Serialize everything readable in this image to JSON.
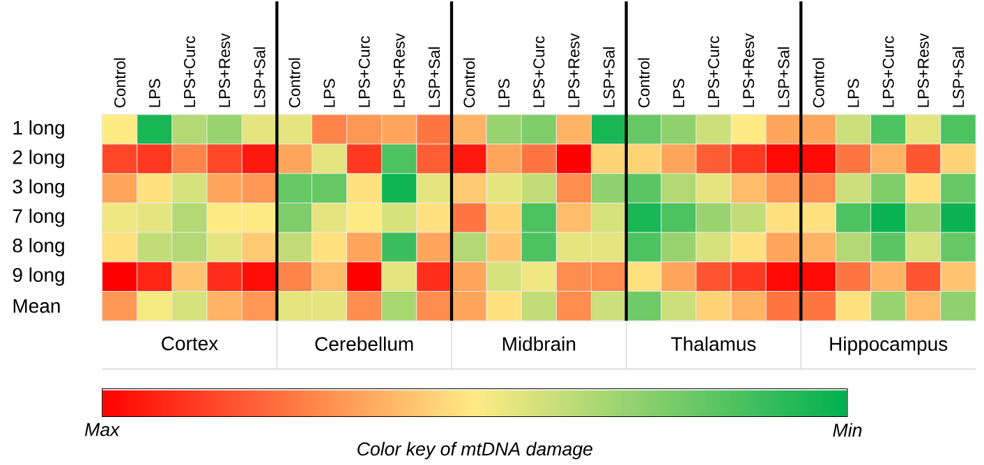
{
  "chart_data": {
    "type": "heatmap",
    "categories": [
      "Control",
      "LPS",
      "LPS+Curc",
      "LPS+Resv",
      "LSP+Sal",
      "Control",
      "LPS",
      "LPS+Curc",
      "LPS+Resv",
      "LSP+Sal",
      "Control",
      "LPS",
      "LPS+Curc",
      "LPS+Resv",
      "LSP+Sal",
      "Control",
      "LPS",
      "LPS+Curc",
      "LPS+Resv",
      "LSP+Sal",
      "Control",
      "LPS",
      "LPS+Curc",
      "LPS+Resv",
      "LSP+Sal"
    ],
    "y_categories": [
      "1 long",
      "2 long",
      "3 long",
      "7 long",
      "8 long",
      "9 long",
      "Mean"
    ],
    "cells": [
      [
        0.5,
        0.05,
        0.35,
        0.3,
        0.45,
        0.45,
        0.72,
        0.68,
        0.65,
        0.75,
        0.62,
        0.3,
        0.25,
        0.62,
        0.05,
        0.2,
        0.28,
        0.4,
        0.5,
        0.65,
        0.65,
        0.4,
        0.15,
        0.45,
        0.15
      ],
      [
        0.85,
        0.88,
        0.72,
        0.85,
        0.95,
        0.65,
        0.45,
        0.88,
        0.15,
        0.8,
        0.95,
        0.65,
        0.75,
        1.0,
        0.55,
        0.55,
        0.65,
        0.8,
        0.88,
        0.98,
        0.98,
        0.75,
        0.62,
        0.82,
        0.55
      ],
      [
        0.65,
        0.52,
        0.42,
        0.65,
        0.68,
        0.2,
        0.2,
        0.52,
        0.03,
        0.45,
        0.57,
        0.45,
        0.38,
        0.7,
        0.28,
        0.18,
        0.35,
        0.45,
        0.6,
        0.68,
        0.7,
        0.4,
        0.25,
        0.52,
        0.2
      ],
      [
        0.47,
        0.45,
        0.35,
        0.5,
        0.5,
        0.25,
        0.45,
        0.5,
        0.42,
        0.52,
        0.75,
        0.55,
        0.15,
        0.6,
        0.42,
        0.05,
        0.15,
        0.3,
        0.38,
        0.52,
        0.52,
        0.15,
        0.02,
        0.3,
        0.02
      ],
      [
        0.52,
        0.38,
        0.35,
        0.45,
        0.57,
        0.38,
        0.52,
        0.65,
        0.12,
        0.65,
        0.35,
        0.58,
        0.15,
        0.45,
        0.45,
        0.15,
        0.3,
        0.42,
        0.52,
        0.65,
        0.62,
        0.35,
        0.18,
        0.42,
        0.2
      ],
      [
        1.0,
        0.92,
        0.58,
        0.9,
        0.97,
        0.72,
        0.6,
        1.0,
        0.45,
        0.9,
        0.65,
        0.42,
        0.47,
        0.7,
        0.7,
        0.52,
        0.65,
        0.82,
        0.88,
        0.98,
        0.98,
        0.75,
        0.62,
        0.82,
        0.58
      ],
      [
        0.68,
        0.48,
        0.42,
        0.62,
        0.68,
        0.45,
        0.45,
        0.7,
        0.33,
        0.7,
        0.65,
        0.52,
        0.38,
        0.7,
        0.4,
        0.22,
        0.4,
        0.55,
        0.62,
        0.75,
        0.75,
        0.52,
        0.3,
        0.6,
        0.28
      ]
    ],
    "annotations": [
      "Cortex",
      "Cerebellum",
      "Midbrain",
      "Thalamus",
      "Hippocampus"
    ],
    "clabel": "*Color key of mtDNA damage*",
    "clim": [
      1,
      0
    ],
    "cticks": [
      {
        "value": 1,
        "label": "*Max*"
      },
      {
        "value": 0,
        "label": "*Min*"
      }
    ]
  }
}
